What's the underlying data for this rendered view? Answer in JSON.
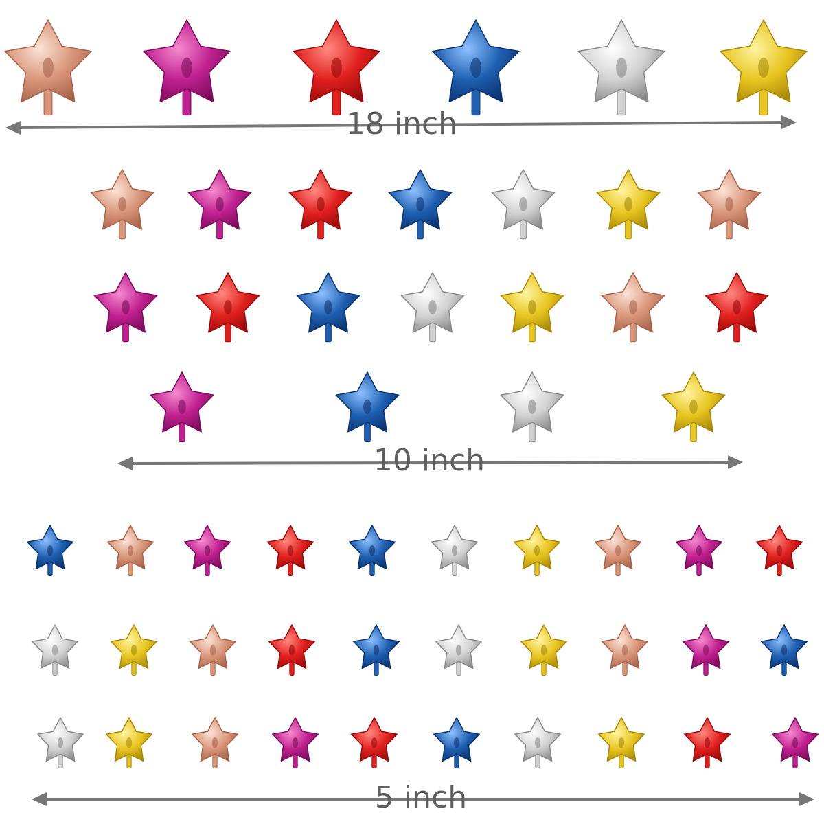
{
  "sizes": [
    {
      "label": "18 inch"
    },
    {
      "label": "10 inch"
    },
    {
      "label": "5 inch"
    }
  ]
}
